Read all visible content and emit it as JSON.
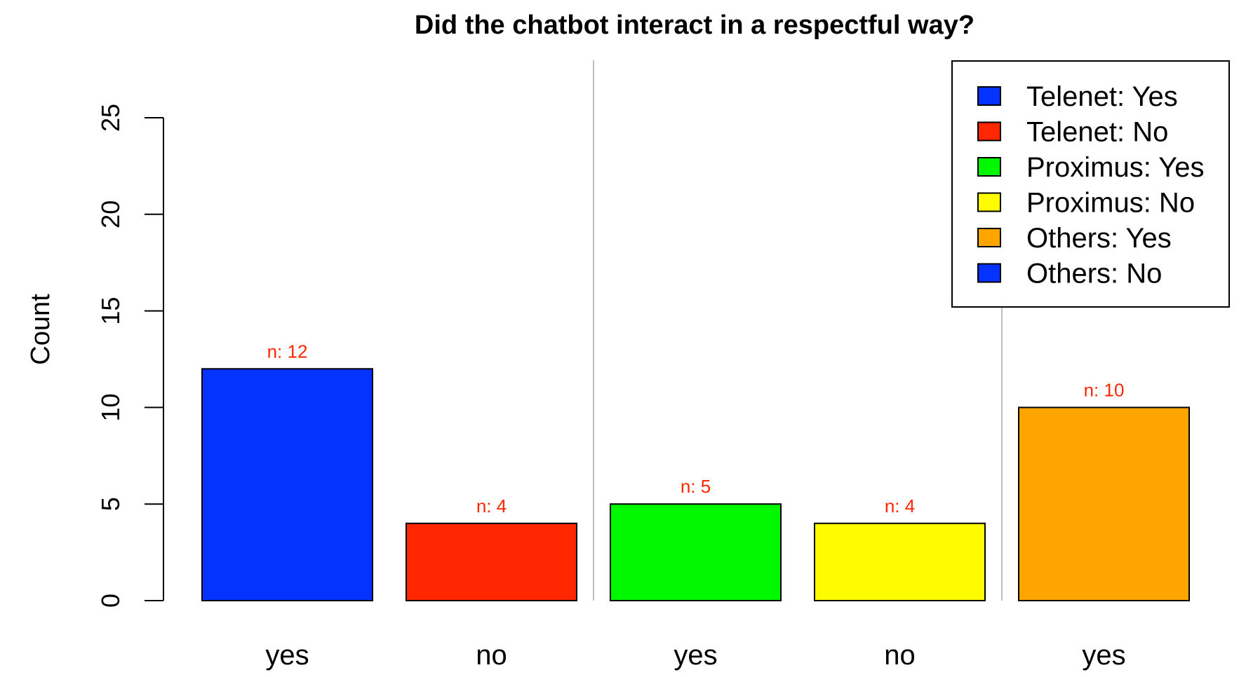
{
  "chart_data": {
    "type": "bar",
    "title": "Did the chatbot interact in a respectful way?",
    "xlabel": "",
    "ylabel": "Count",
    "ylim": [
      0,
      25
    ],
    "yticks": [
      0,
      5,
      10,
      15,
      20,
      25
    ],
    "categories": [
      "yes",
      "no",
      "yes",
      "no",
      "yes"
    ],
    "values": [
      12,
      4,
      5,
      4,
      10
    ],
    "data_labels": [
      "n: 12",
      "n: 4",
      "n: 5",
      "n: 4",
      "n: 10"
    ],
    "bar_colors": [
      "#0433FF",
      "#FF2600",
      "#00F900",
      "#FFFB00",
      "#FFA500"
    ],
    "data_label_color": "#FF2600",
    "group_separators": true,
    "grid": false,
    "legend": {
      "placement": "top-right",
      "entries": [
        {
          "label": "Telenet: Yes",
          "color": "#0433FF"
        },
        {
          "label": "Telenet: No",
          "color": "#FF2600"
        },
        {
          "label": "Proximus: Yes",
          "color": "#00F900"
        },
        {
          "label": "Proximus: No",
          "color": "#FFFB00"
        },
        {
          "label": "Others: Yes",
          "color": "#FFA500"
        },
        {
          "label": "Others: No",
          "color": "#0433FF"
        }
      ]
    }
  }
}
